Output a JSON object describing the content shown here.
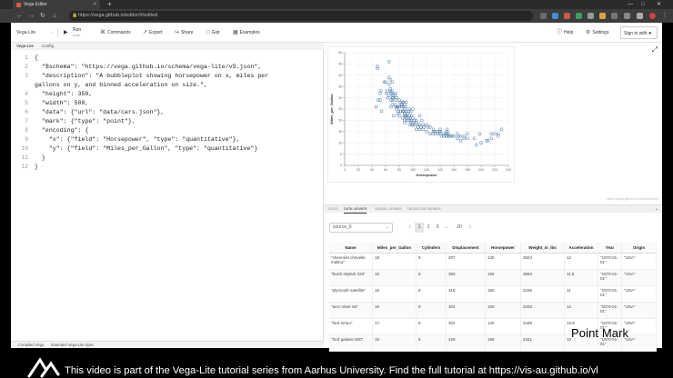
{
  "browser": {
    "tab_title": "Vega Editor",
    "url": "https://vega.github.io/editor/#/edited",
    "new_tab_icon": "+",
    "close_tab_icon": "×"
  },
  "toolbar": {
    "mode": "Vega-Lite",
    "run_label": "Run",
    "run_sub": "Auto",
    "commands": "Commands",
    "export": "Export",
    "share": "Share",
    "gist": "Gist",
    "examples": "Examples",
    "help": "Help",
    "settings": "Settings",
    "signin": "Sign in with"
  },
  "editor": {
    "tabs": [
      "Vega-Lite",
      "Config"
    ],
    "lines": [
      {
        "n": "1",
        "text": "{"
      },
      {
        "n": "2",
        "text": "  \"$schema\": \"https://vega.github.io/schema/vega-lite/v5.json\","
      },
      {
        "n": "3",
        "text": "  \"description\": \"A bubbleplot showing horsepower on x, miles per"
      },
      {
        "n": "",
        "text": "gallons on y, and binned acceleration on size.\","
      },
      {
        "n": "4",
        "text": "  \"height\": 350,"
      },
      {
        "n": "5",
        "text": "  \"width\": 500,"
      },
      {
        "n": "6",
        "text": "  \"data\": {\"url\": \"data/cars.json\"},"
      },
      {
        "n": "7",
        "text": "  \"mark\": {\"type\": \"point\"},"
      },
      {
        "n": "8",
        "text": "  \"encoding\": {"
      },
      {
        "n": "9",
        "text": "    \"x\": {\"field\": \"Horsepower\", \"type\": \"quantitative\"},"
      },
      {
        "n": "10",
        "text": "    \"y\": {\"field\": \"Miles_per_Gallon\", \"type\": \"quantitative\"}"
      },
      {
        "n": "11",
        "text": "  }"
      },
      {
        "n": "12",
        "text": "}"
      }
    ],
    "debug_tabs": [
      "Compiled Vega",
      "Extended Vega-Lite Spec"
    ]
  },
  "viz": {
    "footer": "https://vega.github.io/editor/#/edited"
  },
  "chart_data": {
    "type": "scatter",
    "xlabel": "Horsepower",
    "ylabel": "Miles_per_Gallon",
    "xlim": [
      0,
      240
    ],
    "ylim": [
      0,
      50
    ],
    "xticks": [
      0,
      20,
      40,
      60,
      80,
      100,
      120,
      140,
      160,
      180,
      200,
      220,
      240
    ],
    "yticks": [
      0,
      5,
      10,
      15,
      20,
      25,
      30,
      35,
      40,
      45,
      50
    ],
    "grid": true,
    "point_color": "#4c78a8",
    "points": [
      [
        46,
        26
      ],
      [
        48,
        43
      ],
      [
        48,
        44
      ],
      [
        49,
        29
      ],
      [
        52,
        32
      ],
      [
        52,
        29
      ],
      [
        53,
        33
      ],
      [
        54,
        24
      ],
      [
        58,
        37
      ],
      [
        60,
        37
      ],
      [
        61,
        32
      ],
      [
        62,
        33
      ],
      [
        63,
        30
      ],
      [
        65,
        46
      ],
      [
        65,
        36
      ],
      [
        65,
        39
      ],
      [
        65,
        31
      ],
      [
        67,
        38
      ],
      [
        67,
        33
      ],
      [
        67,
        34
      ],
      [
        68,
        29
      ],
      [
        68,
        32
      ],
      [
        68,
        26
      ],
      [
        69,
        33
      ],
      [
        70,
        30
      ],
      [
        70,
        27
      ],
      [
        70,
        32
      ],
      [
        70,
        37
      ],
      [
        70,
        29
      ],
      [
        71,
        30
      ],
      [
        71,
        31
      ],
      [
        72,
        22
      ],
      [
        74,
        27
      ],
      [
        74,
        31
      ],
      [
        75,
        26
      ],
      [
        75,
        29
      ],
      [
        75,
        32
      ],
      [
        76,
        25
      ],
      [
        76,
        30
      ],
      [
        77,
        26
      ],
      [
        78,
        26
      ],
      [
        78,
        23
      ],
      [
        79,
        24
      ],
      [
        80,
        26
      ],
      [
        80,
        22
      ],
      [
        80,
        29
      ],
      [
        81,
        28
      ],
      [
        82,
        24
      ],
      [
        83,
        27
      ],
      [
        84,
        26
      ],
      [
        84,
        27
      ],
      [
        85,
        21
      ],
      [
        85,
        24
      ],
      [
        85,
        28
      ],
      [
        86,
        26
      ],
      [
        86,
        28
      ],
      [
        87,
        24
      ],
      [
        88,
        20
      ],
      [
        88,
        27
      ],
      [
        88,
        22
      ],
      [
        88,
        23
      ],
      [
        88,
        19
      ],
      [
        88,
        25
      ],
      [
        89,
        22
      ],
      [
        90,
        21
      ],
      [
        90,
        24
      ],
      [
        90,
        26
      ],
      [
        90,
        28
      ],
      [
        90,
        22
      ],
      [
        91,
        20
      ],
      [
        92,
        23
      ],
      [
        93,
        21
      ],
      [
        94,
        24
      ],
      [
        95,
        20
      ],
      [
        95,
        22
      ],
      [
        95,
        25
      ],
      [
        95,
        18
      ],
      [
        96,
        21
      ],
      [
        97,
        19
      ],
      [
        97,
        24
      ],
      [
        97,
        20
      ],
      [
        98,
        22
      ],
      [
        99,
        18
      ],
      [
        100,
        18
      ],
      [
        100,
        21
      ],
      [
        100,
        25
      ],
      [
        100,
        19
      ],
      [
        102,
        20
      ],
      [
        103,
        18
      ],
      [
        105,
        19
      ],
      [
        105,
        16
      ],
      [
        105,
        20
      ],
      [
        107,
        18
      ],
      [
        108,
        17
      ],
      [
        110,
        18
      ],
      [
        110,
        22
      ],
      [
        110,
        16
      ],
      [
        112,
        17
      ],
      [
        113,
        20
      ],
      [
        115,
        16
      ],
      [
        115,
        18
      ],
      [
        116,
        17
      ],
      [
        120,
        15
      ],
      [
        120,
        18
      ],
      [
        122,
        17
      ],
      [
        125,
        14
      ],
      [
        125,
        17
      ],
      [
        129,
        14
      ],
      [
        130,
        15
      ],
      [
        130,
        16
      ],
      [
        132,
        15
      ],
      [
        133,
        14
      ],
      [
        135,
        15
      ],
      [
        137,
        14
      ],
      [
        139,
        15
      ],
      [
        140,
        14
      ],
      [
        140,
        15
      ],
      [
        140,
        16
      ],
      [
        142,
        13
      ],
      [
        145,
        14
      ],
      [
        145,
        13
      ],
      [
        148,
        14
      ],
      [
        149,
        13
      ],
      [
        150,
        14
      ],
      [
        150,
        15
      ],
      [
        150,
        16
      ],
      [
        150,
        13
      ],
      [
        152,
        14
      ],
      [
        153,
        13
      ],
      [
        155,
        13
      ],
      [
        158,
        13
      ],
      [
        160,
        13
      ],
      [
        165,
        12
      ],
      [
        165,
        14
      ],
      [
        167,
        13
      ],
      [
        170,
        13
      ],
      [
        170,
        11
      ],
      [
        175,
        13
      ],
      [
        175,
        12
      ],
      [
        180,
        14
      ],
      [
        180,
        12
      ],
      [
        190,
        12
      ],
      [
        193,
        9
      ],
      [
        198,
        14
      ],
      [
        200,
        10
      ],
      [
        208,
        11
      ],
      [
        210,
        11
      ],
      [
        215,
        14
      ],
      [
        215,
        12
      ],
      [
        220,
        14
      ],
      [
        225,
        13
      ],
      [
        225,
        14
      ],
      [
        230,
        16
      ]
    ]
  },
  "data_viewer": {
    "tabs": [
      "LOGS",
      "DATA VIEWER",
      "SIGNAL VIEWER",
      "DATAFLOW VIEWER"
    ],
    "dataset": "source_0",
    "pages": [
      "1",
      "2",
      "3",
      "...",
      "20"
    ],
    "columns": [
      "Name",
      "Miles_per_Gallon",
      "Cylinders",
      "Displacement",
      "Horsepower",
      "Weight_in_lbs",
      "Acceleration",
      "Year",
      "Origin"
    ],
    "rows": [
      [
        "\"chevrolet chevelle malibu\"",
        "18",
        "8",
        "307",
        "130",
        "3504",
        "12",
        "\"1970-01-01\"",
        "\"USA\""
      ],
      [
        "\"buick skylark 320\"",
        "15",
        "8",
        "350",
        "165",
        "3693",
        "11.5",
        "\"1970-01-01\"",
        "\"USA\""
      ],
      [
        "\"plymouth satellite\"",
        "18",
        "8",
        "318",
        "150",
        "3436",
        "11",
        "\"1970-01-01\"",
        "\"USA\""
      ],
      [
        "\"amc rebel sst\"",
        "16",
        "8",
        "304",
        "150",
        "3433",
        "12",
        "\"1970-01-01\"",
        "\"USA\""
      ],
      [
        "\"ford torino\"",
        "17",
        "8",
        "302",
        "140",
        "3449",
        "10.5",
        "\"1970-01-01\"",
        "\"USA\""
      ],
      [
        "\"ford galaxie 500\"",
        "15",
        "8",
        "429",
        "198",
        "4341",
        "10",
        "\"1970-01-01\"",
        "\"USA\""
      ]
    ]
  },
  "watermark": "Point Mark",
  "caption": "This video is part of the Vega-Lite tutorial series from Aarhus University. Find the full tutorial at https://vis-au.github.io/vl"
}
